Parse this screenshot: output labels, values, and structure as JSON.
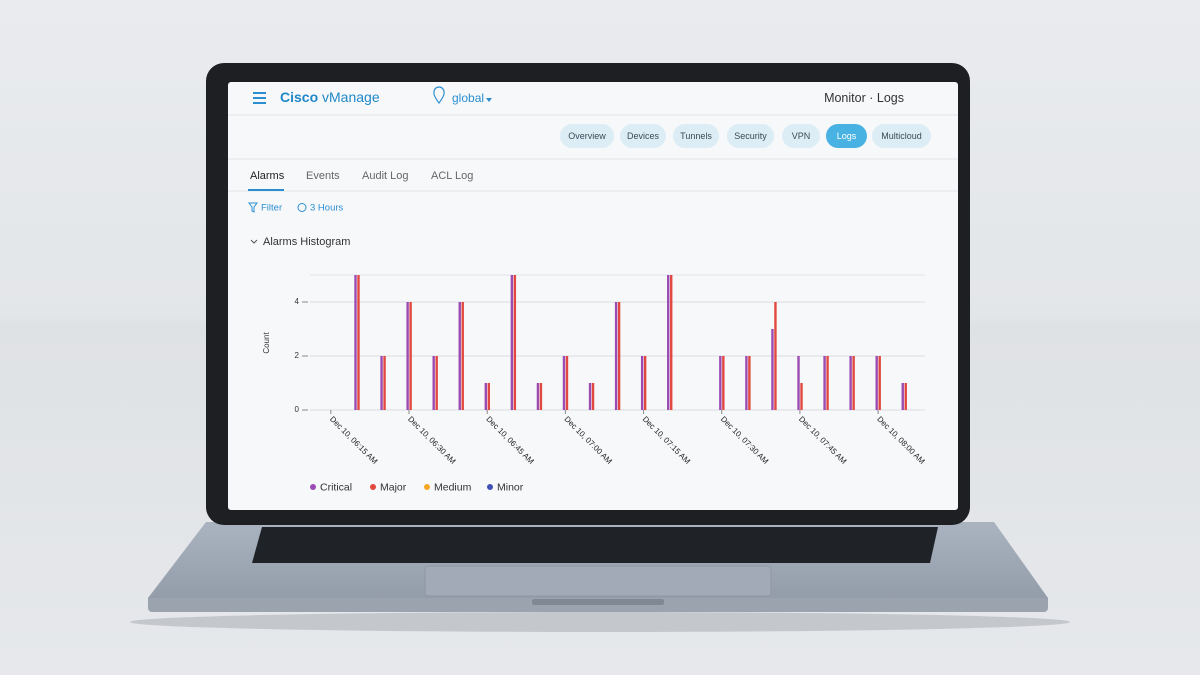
{
  "header": {
    "brand_bold": "Cisco",
    "brand_rest": "vManage",
    "location": "global",
    "breadcrumb": [
      "Monitor",
      "Logs"
    ],
    "breadcrumb_separator": "·"
  },
  "nav": {
    "items": [
      "Overview",
      "Devices",
      "Tunnels",
      "Security",
      "VPN",
      "Logs",
      "Multicloud"
    ],
    "active": "Logs"
  },
  "tabs": {
    "items": [
      "Alarms",
      "Events",
      "Audit Log",
      "ACL Log"
    ],
    "active": "Alarms"
  },
  "toolbar": {
    "filter": "Filter",
    "time_range": "3 Hours"
  },
  "chart_data": {
    "type": "bar",
    "title": "Alarms Histogram",
    "y_label": "Count",
    "x": [
      "Dec 10, 06:20 AM",
      "Dec 10, 06:25 AM",
      "Dec 10, 06:30 AM",
      "Dec 10, 06:35 AM",
      "Dec 10, 06:40 AM",
      "Dec 10, 06:45 AM",
      "Dec 10, 06:50 AM",
      "Dec 10, 06:55 AM",
      "Dec 10, 07:00 AM",
      "Dec 10, 07:05 AM",
      "Dec 10, 07:10 AM",
      "Dec 10, 07:15 AM",
      "Dec 10, 07:20 AM",
      "Dec 10, 07:25 AM",
      "Dec 10, 07:30 AM",
      "Dec 10, 07:35 AM",
      "Dec 10, 07:40 AM",
      "Dec 10, 07:45 AM",
      "Dec 10, 07:50 AM",
      "Dec 10, 07:55 AM",
      "Dec 10, 08:00 AM",
      "Dec 10, 08:05 AM"
    ],
    "series": [
      {
        "name": "Critical",
        "color": "#9b4bb2",
        "values": [
          5,
          2,
          4,
          2,
          4,
          1,
          5,
          1,
          2,
          1,
          4,
          2,
          5,
          0,
          2,
          2,
          3,
          2,
          2,
          2,
          2,
          1
        ]
      },
      {
        "name": "Major",
        "color": "#e2483f",
        "values": [
          5,
          2,
          4,
          2,
          4,
          1,
          5,
          1,
          2,
          1,
          4,
          2,
          5,
          0,
          2,
          2,
          4,
          1,
          2,
          2,
          2,
          1
        ]
      },
      {
        "name": "Medium",
        "color": "#f5a623",
        "values": [
          0,
          0,
          0,
          0,
          0,
          0,
          0,
          0,
          0,
          0,
          0,
          0,
          0,
          0,
          0,
          0,
          0,
          0,
          0,
          0,
          0,
          0
        ]
      },
      {
        "name": "Minor",
        "color": "#4051b5",
        "values": [
          0,
          0,
          0,
          0,
          0,
          0,
          0,
          0,
          0,
          0,
          0,
          0,
          0,
          0,
          0,
          0,
          0,
          0,
          0,
          0,
          0,
          0
        ]
      }
    ],
    "xlim": [
      "Dec 10, 06:11 AM",
      "Dec 10, 08:09 AM"
    ],
    "xticks": [
      "Dec 10, 06:15 AM",
      "Dec 10, 06:30 AM",
      "Dec 10, 06:45 AM",
      "Dec 10, 07:00 AM",
      "Dec 10, 07:15 AM",
      "Dec 10, 07:30 AM",
      "Dec 10, 07:45 AM",
      "Dec 10, 08:00 AM"
    ],
    "ylim": [
      0,
      5
    ],
    "yticks": [
      0,
      2,
      4
    ],
    "grid": true
  }
}
